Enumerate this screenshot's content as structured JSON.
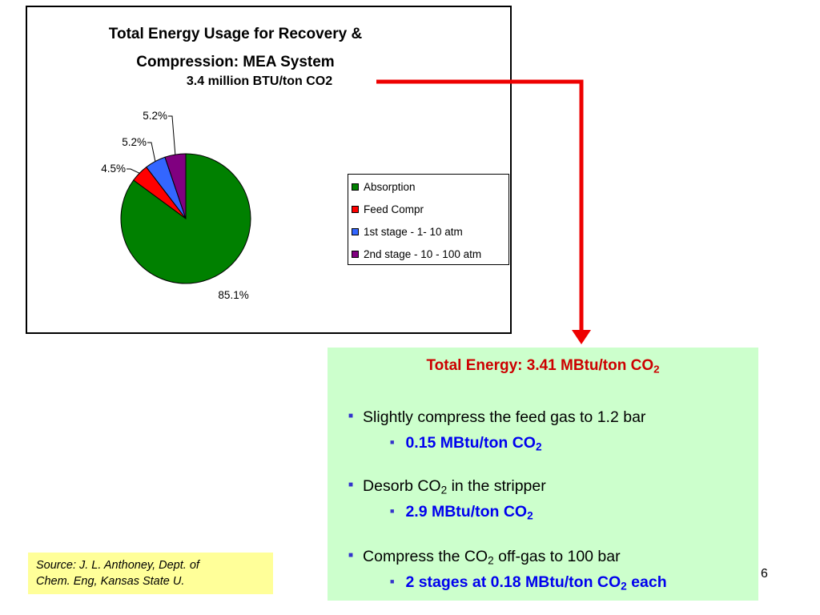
{
  "chart_data": {
    "type": "pie",
    "title_line1": "Total Energy Usage for Recovery &",
    "title_line2": "Compression: MEA System",
    "subtitle": "3.4 million BTU/ton CO2",
    "categories": [
      "Absorption",
      "Feed Compr",
      "1st stage - 1- 10 atm",
      "2nd stage - 10 - 100 atm"
    ],
    "values": [
      85.1,
      4.5,
      5.2,
      5.2
    ],
    "data_labels": [
      "85.1%",
      "4.5%",
      "5.2%",
      "5.2%"
    ],
    "colors": [
      "#008000",
      "#ff0000",
      "#3366ff",
      "#800080"
    ],
    "legend_position": "right"
  },
  "info": {
    "title_main": "Total Energy: 3.41 MBtu/ton CO",
    "title_sub": "2",
    "b1_text": "Slightly compress the feed gas to 1.2 bar",
    "b1_sub_main": "0.15 MBtu/ton CO",
    "b1_sub_sub": "2",
    "b2_pre": "Desorb CO",
    "b2_sub": "2",
    "b2_post": " in the stripper",
    "b2_sub_main": "2.9 MBtu/ton CO",
    "b2_sub_sub": "2",
    "b3_pre": "Compress the CO",
    "b3_sub": "2",
    "b3_post": " off-gas to 100 bar",
    "b3_sub_main": "2 stages at 0.18 MBtu/ton CO",
    "b3_sub_sub": "2",
    "b3_sub_post": " each"
  },
  "source": {
    "line1": "Source: J. L. Anthoney, Dept. of",
    "line2": "Chem. Eng, Kansas State U."
  },
  "page_number": "6",
  "colors": {
    "arrow": "#ee0000",
    "info_bg": "#ccffcc",
    "source_bg": "#ffff99",
    "info_title": "#cc0000",
    "sub_bullet_text": "#0000ee"
  }
}
